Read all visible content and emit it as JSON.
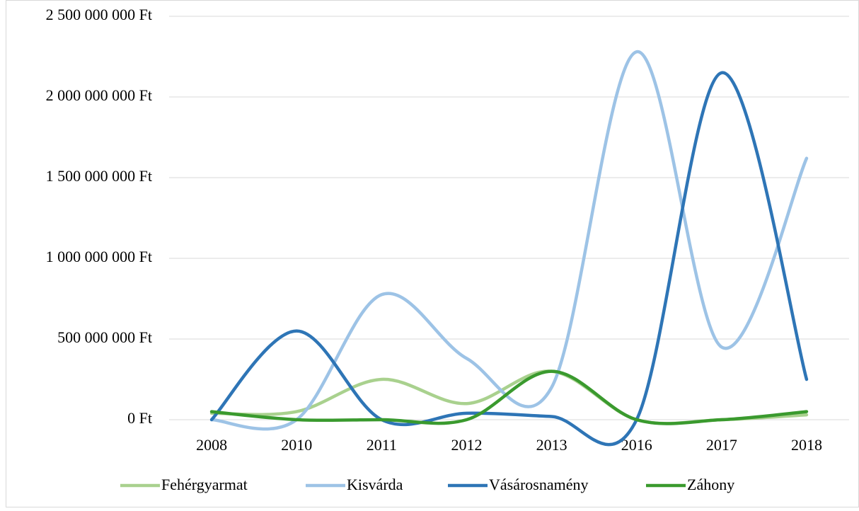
{
  "chart_data": {
    "type": "line",
    "smooth": true,
    "categories": [
      "2008",
      "2010",
      "2011",
      "2012",
      "2013",
      "2016",
      "2017",
      "2018"
    ],
    "series": [
      {
        "name": "Fehérgyarmat",
        "color": "#a9d18e",
        "values": [
          40000000,
          50000000,
          250000000,
          100000000,
          300000000,
          0,
          0,
          30000000
        ]
      },
      {
        "name": "Kisvárda",
        "color": "#9dc3e6",
        "values": [
          0,
          0,
          775000000,
          380000000,
          200000000,
          2280000000,
          450000000,
          1620000000
        ]
      },
      {
        "name": "Vásárosnamény",
        "color": "#2e75b6",
        "values": [
          0,
          550000000,
          0,
          40000000,
          20000000,
          0,
          2150000000,
          250000000
        ]
      },
      {
        "name": "Záhony",
        "color": "#3a9a2e",
        "values": [
          50000000,
          0,
          0,
          0,
          300000000,
          0,
          0,
          50000000
        ]
      }
    ],
    "ylim": [
      0,
      2500000000
    ],
    "yticks": [
      {
        "value": 0,
        "label": "0 Ft"
      },
      {
        "value": 500000000,
        "label": "500 000 000 Ft"
      },
      {
        "value": 1000000000,
        "label": "1 000 000 000 Ft"
      },
      {
        "value": 1500000000,
        "label": "1 500 000 000 Ft"
      },
      {
        "value": 2000000000,
        "label": "2 000 000 000 Ft"
      },
      {
        "value": 2500000000,
        "label": "2 500 000 000 Ft"
      }
    ],
    "grid": true,
    "legend": "bottom"
  }
}
